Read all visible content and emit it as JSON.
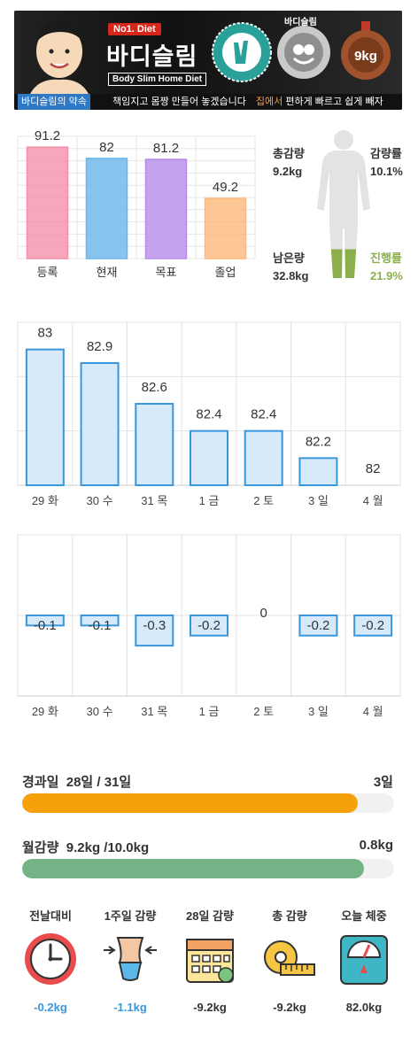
{
  "banner": {
    "no1": "No1. Diet",
    "brand": "바디슬림",
    "brand_sub": "Body Slim Home Diet",
    "seal_label": "바디슬림",
    "seal_weight": "9kg",
    "strip_a": "바디슬림의 약속",
    "strip_b": "책임지고 몸짱 만들어 놓겠습니다",
    "strip_c": "집에서",
    "strip_d": "편하게 빠르고 쉽게 빼자"
  },
  "body_stats": {
    "total_loss_label": "총감량",
    "total_loss_value": "9.2kg",
    "loss_rate_label": "감량률",
    "loss_rate_value": "10.1%",
    "remaining_label": "남은량",
    "remaining_value": "32.8kg",
    "progress_label": "진행률",
    "progress_value": "21.9%",
    "progress_fraction": 0.219
  },
  "progress": {
    "days_label": "경과일",
    "days_value": "28일 / 31일",
    "days_remaining": "3일",
    "days_fraction": 0.903,
    "monthly_label": "월감량",
    "monthly_value": "9.2kg  /10.0kg",
    "monthly_remaining": "0.8kg",
    "monthly_fraction": 0.92
  },
  "summary": [
    {
      "title": "전날대비",
      "icon": "clock-icon",
      "value": "-0.2kg",
      "highlight": true
    },
    {
      "title": "1주일 감량",
      "icon": "waist-icon",
      "value": "-1.1kg",
      "highlight": true
    },
    {
      "title": "28일 감량",
      "icon": "calendar-icon",
      "value": "-9.2kg",
      "highlight": false
    },
    {
      "title": "총 감량",
      "icon": "tape-measure-icon",
      "value": "-9.2kg",
      "highlight": false
    },
    {
      "title": "오늘 체중",
      "icon": "scale-icon",
      "value": "82.0kg",
      "highlight": false
    }
  ],
  "colors": {
    "orange": "#f5a10c",
    "green": "#74b386",
    "blue_bar": "#d6eafb",
    "blue_edge": "#3a97dc"
  },
  "chart_data": [
    {
      "type": "bar",
      "categories": [
        "등록",
        "현재",
        "목표",
        "졸업"
      ],
      "values": [
        91.2,
        82,
        81.2,
        49.2
      ],
      "colors": [
        "#f590ab",
        "#6bb5ec",
        "#b68de8",
        "#fdb97a"
      ],
      "ylim": [
        0,
        100
      ],
      "grid": true
    },
    {
      "type": "bar",
      "categories": [
        "29 화",
        "30 수",
        "31 목",
        "1 금",
        "2 토",
        "3 일",
        "4 월"
      ],
      "values": [
        83,
        82.9,
        82.6,
        82.4,
        82.4,
        82.2,
        82
      ],
      "ylim": [
        82,
        83.2
      ],
      "grid": true
    },
    {
      "type": "bar",
      "categories": [
        "29 화",
        "30 수",
        "31 목",
        "1 금",
        "2 토",
        "3 일",
        "4 월"
      ],
      "values": [
        -0.1,
        -0.1,
        -0.3,
        -0.2,
        0,
        -0.2,
        -0.2
      ],
      "ylim": [
        -0.8,
        0.8
      ],
      "grid": true
    }
  ]
}
